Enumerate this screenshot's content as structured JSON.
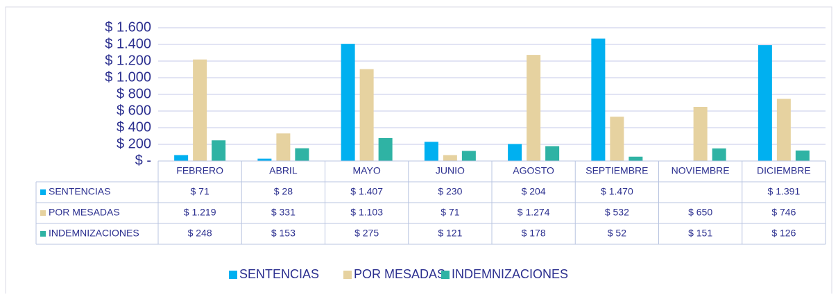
{
  "chart_data": {
    "type": "bar",
    "categories": [
      "FEBRERO",
      "ABRIL",
      "MAYO",
      "JUNIO",
      "AGOSTO",
      "SEPTIEMBRE",
      "NOVIEMBRE",
      "DICIEMBRE"
    ],
    "series": [
      {
        "name": "SENTENCIAS",
        "color": "#00b0f0",
        "values": [
          71,
          28,
          1407,
          230,
          204,
          1470,
          null,
          1391
        ],
        "value_labels": [
          "$ 71",
          "$ 28",
          "$ 1.407",
          "$ 230",
          "$ 204",
          "$ 1.470",
          null,
          "$ 1.391"
        ]
      },
      {
        "name": "POR MESADAS",
        "color": "#e6d2a0",
        "values": [
          1219,
          331,
          1103,
          71,
          1274,
          532,
          650,
          746
        ],
        "value_labels": [
          "$ 1.219",
          "$ 331",
          "$ 1.103",
          "$ 71",
          "$ 1.274",
          "$ 532",
          "$ 650",
          "$ 746"
        ]
      },
      {
        "name": "INDEMNIZACIONES",
        "color": "#2fb3a4",
        "values": [
          248,
          153,
          275,
          121,
          178,
          52,
          151,
          126
        ],
        "value_labels": [
          "$ 248",
          "$ 153",
          "$ 275",
          "$ 121",
          "$ 178",
          "$ 52",
          "$ 151",
          "$ 126"
        ]
      }
    ],
    "ylim": [
      0,
      1600
    ],
    "yticks": [
      {
        "value": 0,
        "label": "$ -"
      },
      {
        "value": 200,
        "label": "$ 200"
      },
      {
        "value": 400,
        "label": "$ 400"
      },
      {
        "value": 600,
        "label": "$ 600"
      },
      {
        "value": 800,
        "label": "$ 800"
      },
      {
        "value": 1000,
        "label": "$ 1.000"
      },
      {
        "value": 1200,
        "label": "$ 1.200"
      },
      {
        "value": 1400,
        "label": "$ 1.400"
      },
      {
        "value": 1600,
        "label": "$ 1.600"
      }
    ],
    "grid": true,
    "legend": "bottom"
  }
}
